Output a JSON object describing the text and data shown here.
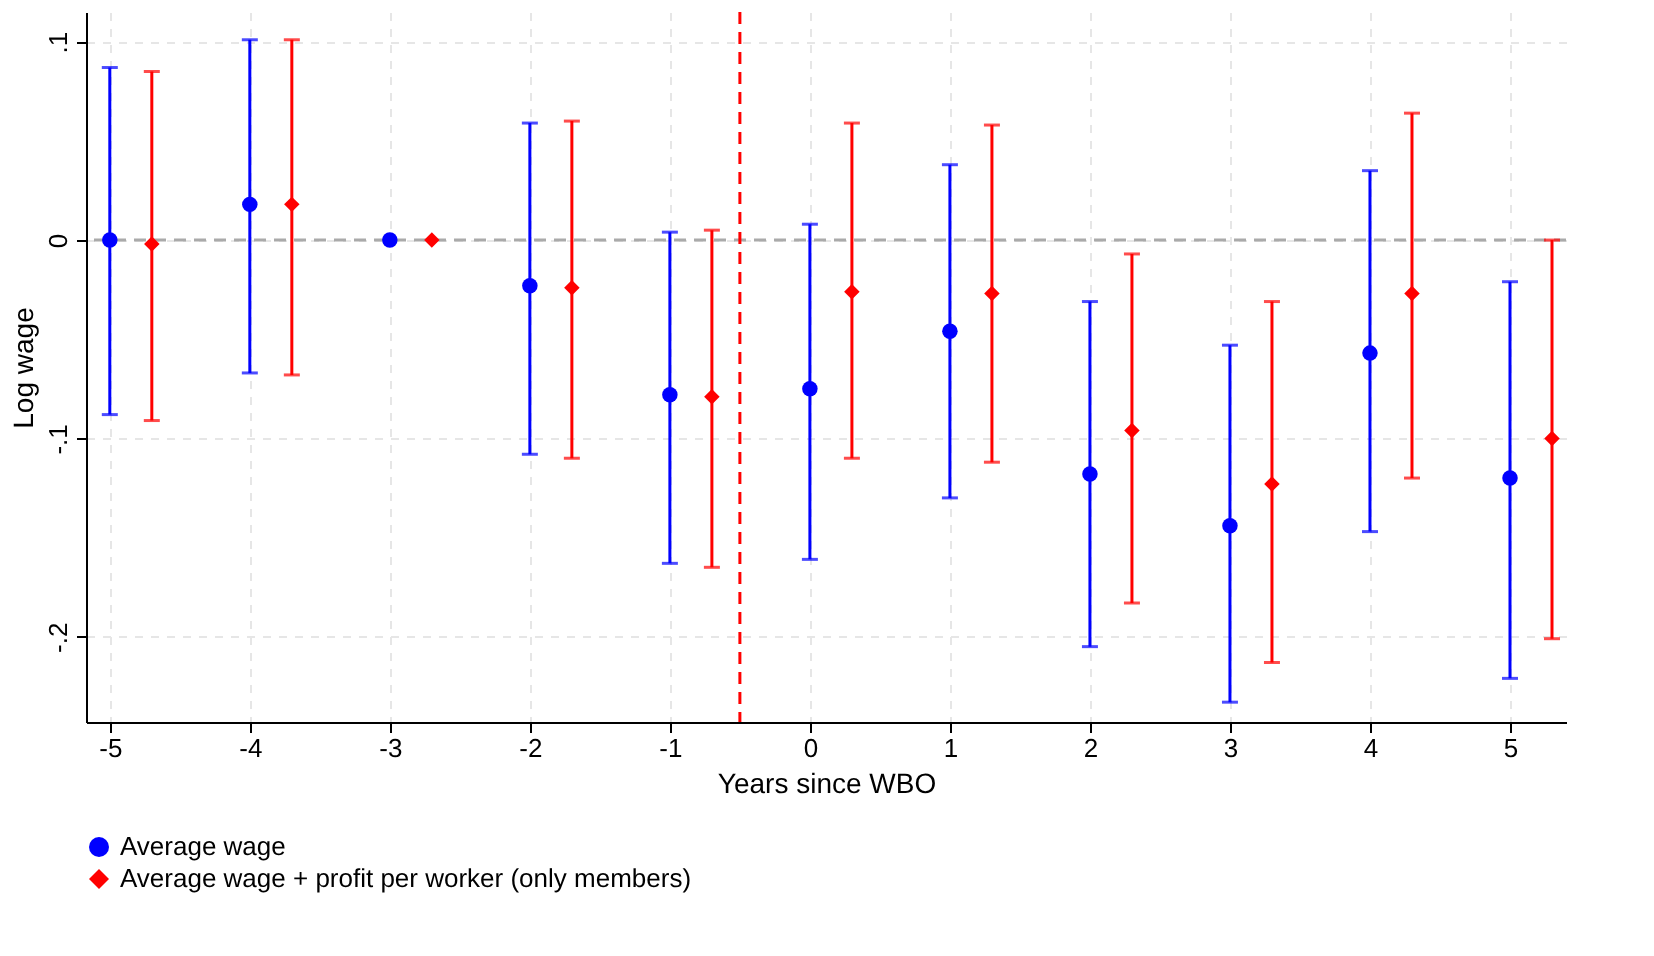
{
  "chart_data": {
    "type": "scatter",
    "xlabel": "Years since WBO",
    "ylabel": "Log wage",
    "xlim": [
      -5.17,
      5.4
    ],
    "xticks": [
      -5,
      -4,
      -3,
      -2,
      -1,
      0,
      1,
      2,
      3,
      4,
      5
    ],
    "ylim": [
      -0.243,
      0.115
    ],
    "yticks": [
      {
        "value": 0.1,
        "label": ".1"
      },
      0,
      {
        "value": -0.1,
        "label": "-.1"
      },
      {
        "value": -0.2,
        "label": "-.2"
      }
    ],
    "grid": true,
    "legend": "bottom",
    "series": [
      {
        "name": "Average wage",
        "color": "#0000ff",
        "marker": "circle",
        "x": [
          -5,
          -4,
          -3,
          -2,
          -1,
          0,
          1,
          2,
          3,
          4,
          5
        ],
        "values": [
          0,
          0.018,
          0,
          -0.023,
          -0.078,
          -0.075,
          -0.046,
          -0.118,
          -0.144,
          -0.057,
          -0.12
        ],
        "errors": [
          [
            -0.088,
            0.087
          ],
          [
            -0.067,
            0.101
          ],
          null,
          [
            -0.108,
            0.059
          ],
          [
            -0.163,
            0.004
          ],
          [
            -0.161,
            0.008
          ],
          [
            -0.13,
            0.038
          ],
          [
            -0.205,
            -0.031
          ],
          [
            -0.233,
            -0.053
          ],
          [
            -0.147,
            0.035
          ],
          [
            -0.221,
            -0.021
          ]
        ]
      },
      {
        "name": "Average wage + profit per worker (only members)",
        "color": "#ff0000",
        "marker": "diamond",
        "x": [
          -4.7,
          -3.7,
          -2.7,
          -1.7,
          -0.7,
          0.3,
          1.3,
          2.3,
          3.3,
          4.3,
          5.3
        ],
        "values": [
          -0.002,
          0.018,
          0,
          -0.024,
          -0.079,
          -0.026,
          -0.027,
          -0.096,
          -0.123,
          -0.027,
          -0.1
        ],
        "errors": [
          [
            -0.091,
            0.085
          ],
          [
            -0.068,
            0.101
          ],
          null,
          [
            -0.11,
            0.06
          ],
          [
            -0.165,
            0.005
          ],
          [
            -0.11,
            0.059
          ],
          [
            -0.112,
            0.058
          ],
          [
            -0.183,
            -0.007
          ],
          [
            -0.213,
            -0.031
          ],
          [
            -0.12,
            0.064
          ],
          [
            -0.201,
            0
          ]
        ]
      }
    ],
    "ref_lines": [
      {
        "axis": "y",
        "value": 0,
        "color": "#aaaaaa",
        "line_style": "dashed"
      },
      {
        "axis": "x",
        "value": -0.5,
        "color": "#ff0000",
        "line_style": "dashed"
      }
    ]
  }
}
